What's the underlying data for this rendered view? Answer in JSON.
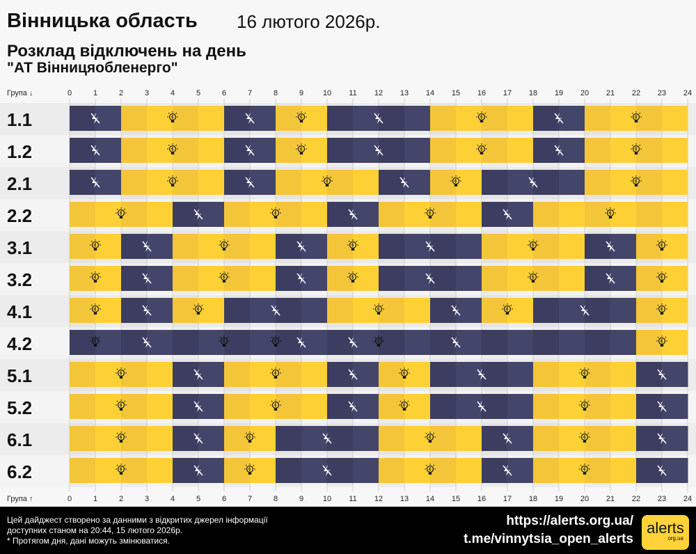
{
  "header": {
    "title": "Вінницька область",
    "date": "16 лютого 2026р.",
    "subtitle": "Розклад відключень на день",
    "company": "\"АТ Вінницяобленерго\""
  },
  "chart_data": {
    "type": "table",
    "x_header_top": "Група ↓",
    "x_header_bottom": "Група ↑",
    "hours": [
      0,
      1,
      2,
      3,
      4,
      5,
      6,
      7,
      8,
      9,
      10,
      11,
      12,
      13,
      14,
      15,
      16,
      17,
      18,
      19,
      20,
      21,
      22,
      23,
      24
    ],
    "colors": {
      "on": "#fdd135",
      "on_alt": "#f3c63a",
      "off": "#43456a",
      "off_alt": "#3c3d60"
    },
    "legend": {
      "on": "bulb-icon",
      "off": "no-power-icon"
    },
    "groups": [
      {
        "name": "1.1",
        "off": [
          [
            0,
            2
          ],
          [
            6,
            8
          ],
          [
            10,
            14
          ],
          [
            18,
            20
          ]
        ]
      },
      {
        "name": "1.2",
        "off": [
          [
            0,
            2
          ],
          [
            6,
            8
          ],
          [
            10,
            14
          ],
          [
            18,
            20
          ]
        ]
      },
      {
        "name": "2.1",
        "off": [
          [
            0,
            2
          ],
          [
            6,
            8
          ],
          [
            12,
            14
          ],
          [
            16,
            20
          ]
        ]
      },
      {
        "name": "2.2",
        "off": [
          [
            4,
            6
          ],
          [
            10,
            12
          ],
          [
            16,
            18
          ]
        ]
      },
      {
        "name": "3.1",
        "off": [
          [
            2,
            4
          ],
          [
            8,
            10
          ],
          [
            12,
            16
          ],
          [
            20,
            22
          ]
        ]
      },
      {
        "name": "3.2",
        "off": [
          [
            2,
            4
          ],
          [
            8,
            10
          ],
          [
            12,
            16
          ],
          [
            20,
            22
          ]
        ]
      },
      {
        "name": "4.1",
        "off": [
          [
            2,
            4
          ],
          [
            6,
            10
          ],
          [
            14,
            16
          ],
          [
            18,
            22
          ]
        ]
      },
      {
        "name": "4.2",
        "off": [
          [
            0,
            22
          ]
        ],
        "extra_on_icons": [
          1,
          6,
          8,
          12
        ],
        "extra_off_icons": [
          3,
          9,
          11,
          15
        ]
      },
      {
        "name": "5.1",
        "off": [
          [
            4,
            6
          ],
          [
            10,
            12
          ],
          [
            14,
            18
          ],
          [
            22,
            24
          ]
        ]
      },
      {
        "name": "5.2",
        "off": [
          [
            4,
            6
          ],
          [
            10,
            12
          ],
          [
            14,
            18
          ],
          [
            22,
            24
          ]
        ]
      },
      {
        "name": "6.1",
        "off": [
          [
            4,
            6
          ],
          [
            8,
            12
          ],
          [
            16,
            18
          ],
          [
            22,
            24
          ]
        ]
      },
      {
        "name": "6.2",
        "off": [
          [
            4,
            6
          ],
          [
            8,
            12
          ],
          [
            16,
            18
          ],
          [
            22,
            24
          ]
        ]
      }
    ]
  },
  "footer": {
    "line1": "Цей дайджест створено за данними з відкритих джерел інформації",
    "line2": "доступних станом на 20:44, 15 лютого 2026р.",
    "line3": "* Протягом дня, дані можуть змінюватися.",
    "url": "https://alerts.org.ua/",
    "telegram": "t.me/vinnytsia_open_alerts",
    "logo": "alerts",
    "logo_sub": "org.ua"
  }
}
